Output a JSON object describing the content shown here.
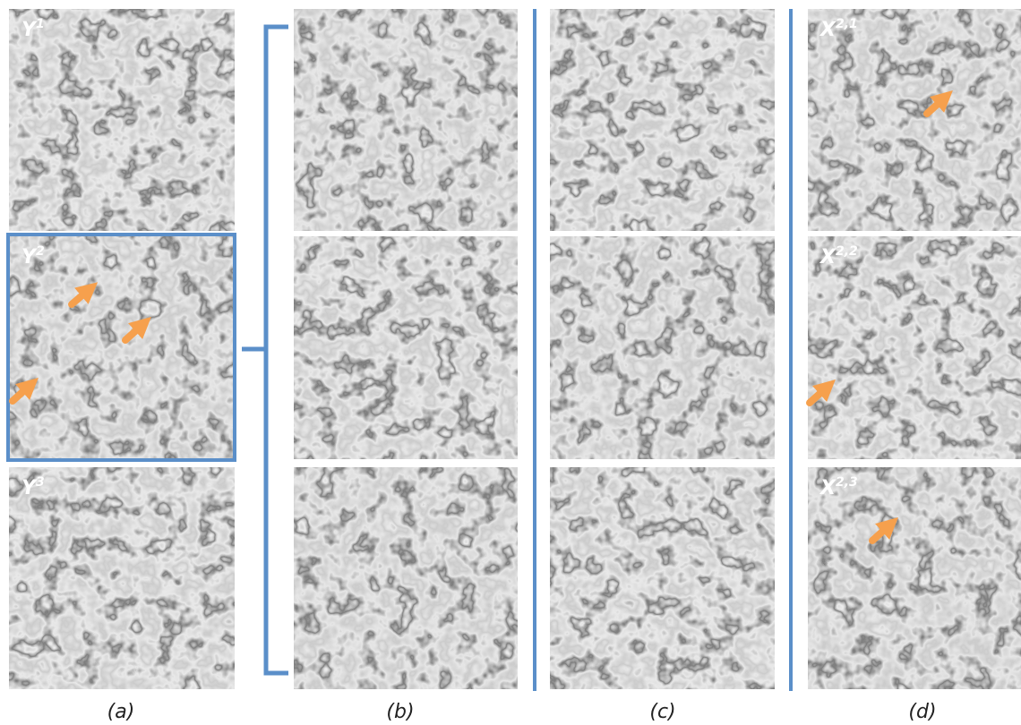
{
  "panel_labels": {
    "a": [
      {
        "base": "Y",
        "sup": "1"
      },
      {
        "base": "Y",
        "sup": "2"
      },
      {
        "base": "Y",
        "sup": "3"
      }
    ],
    "d": [
      {
        "base": "X",
        "sup": "2,1"
      },
      {
        "base": "X",
        "sup": "2,2"
      },
      {
        "base": "X",
        "sup": "2,3"
      }
    ]
  },
  "captions": [
    "(a)",
    "(b)",
    "(c)",
    "(d)"
  ]
}
